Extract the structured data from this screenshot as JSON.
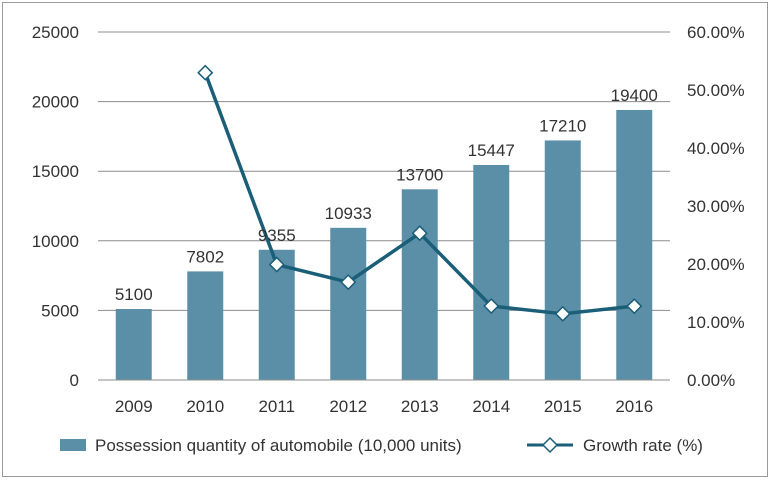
{
  "chart_data": {
    "type": "bar",
    "categories": [
      "2009",
      "2010",
      "2011",
      "2012",
      "2013",
      "2014",
      "2015",
      "2016"
    ],
    "series": [
      {
        "name": "Possession quantity of automobile (10,000 units)",
        "chart_type": "bar",
        "axis": "left",
        "values": [
          5100,
          7802,
          9355,
          10933,
          13700,
          15447,
          17210,
          19400
        ],
        "data_labels": [
          "5100",
          "7802",
          "9355",
          "10933",
          "13700",
          "15447",
          "17210",
          "19400"
        ],
        "color": "#5b8fa8"
      },
      {
        "name": "Growth rate (%)",
        "chart_type": "line",
        "axis": "right",
        "values": [
          null,
          52.98,
          19.9,
          16.87,
          25.31,
          12.75,
          11.41,
          12.73
        ],
        "color": "#1b5e78",
        "marker": "diamond-open"
      }
    ],
    "y_left": {
      "ylim": [
        0,
        25000
      ],
      "ticks": [
        "0",
        "5000",
        "10000",
        "15000",
        "20000",
        "25000"
      ]
    },
    "y_right": {
      "ylim": [
        0,
        60
      ],
      "ticks": [
        "0.00%",
        "10.00%",
        "20.00%",
        "30.00%",
        "40.00%",
        "50.00%",
        "60.00%"
      ]
    },
    "grid": true,
    "legend": "bottom"
  }
}
